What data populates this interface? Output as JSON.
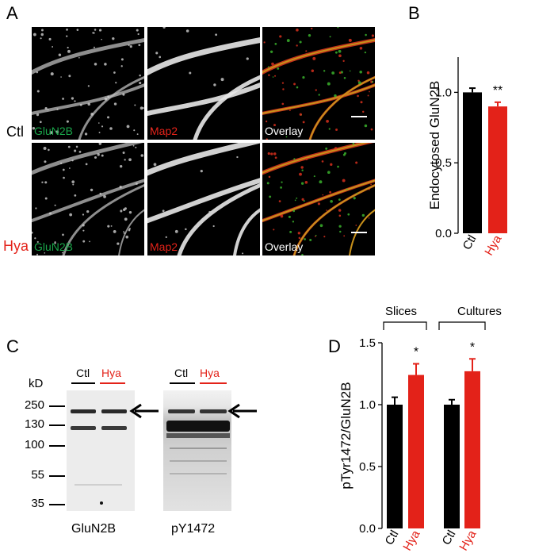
{
  "panel_a": {
    "letter": "A",
    "row_labels": [
      {
        "text": "Ctl",
        "color": "#000000"
      },
      {
        "text": "Hya",
        "color": "#e32219"
      }
    ],
    "tile_labels": [
      {
        "text": "GluN2B",
        "color": "#1aa64a"
      },
      {
        "text": "Map2",
        "color": "#e32219"
      },
      {
        "text": "Overlay",
        "color": "#ffffff"
      }
    ]
  },
  "panel_b": {
    "letter": "B",
    "chart_data": {
      "type": "bar",
      "categories": [
        "Ctl",
        "Hya"
      ],
      "values": [
        1.0,
        0.9
      ],
      "errors": [
        0.03,
        0.03
      ],
      "colors": [
        "#000000",
        "#e32219"
      ],
      "ylabel": "Endocytosed GluN2B",
      "ylim": [
        0,
        1.25
      ],
      "yticks": [
        "0.0",
        "0.5",
        "1.0"
      ],
      "significance": "**"
    }
  },
  "panel_c": {
    "letter": "C",
    "unit_label": "kD",
    "markers": [
      "250",
      "130",
      "100",
      "55",
      "35"
    ],
    "lanes": [
      {
        "text": "Ctl",
        "color": "#000000"
      },
      {
        "text": "Hya",
        "color": "#e32219"
      }
    ],
    "captions": [
      "GluN2B",
      "pY1472"
    ]
  },
  "panel_d": {
    "letter": "D",
    "group_labels": [
      "Slices",
      "Cultures"
    ],
    "chart_data": {
      "type": "bar",
      "groups": [
        "Slices",
        "Cultures"
      ],
      "categories": [
        "Ctl",
        "Hya",
        "Ctl",
        "Hya"
      ],
      "values": [
        1.0,
        1.24,
        1.0,
        1.27
      ],
      "errors": [
        0.06,
        0.09,
        0.04,
        0.1
      ],
      "colors": [
        "#000000",
        "#e32219",
        "#000000",
        "#e32219"
      ],
      "ylabel": "pTyr1472/GluN2B",
      "ylim": [
        0,
        1.5
      ],
      "yticks": [
        "0.0",
        "0.5",
        "1.0",
        "1.5"
      ],
      "significance": [
        "",
        "*",
        "",
        "*"
      ]
    }
  }
}
